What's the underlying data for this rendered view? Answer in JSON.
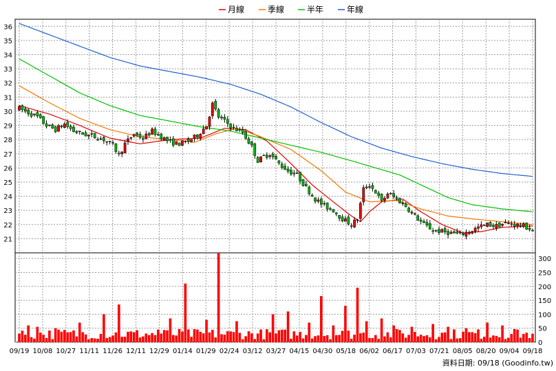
{
  "chart_data": {
    "type": "candlestick",
    "legend": [
      {
        "label": "月線",
        "color": "#e00000"
      },
      {
        "label": "季線",
        "color": "#f07800"
      },
      {
        "label": "半年",
        "color": "#00c000"
      },
      {
        "label": "年線",
        "color": "#1e5fd0"
      }
    ],
    "x_ticks": [
      "09/19",
      "10/08",
      "10/27",
      "11/11",
      "11/26",
      "12/11",
      "12/29",
      "01/14",
      "01/29",
      "02/24",
      "03/12",
      "03/27",
      "04/15",
      "04/30",
      "05/18",
      "06/02",
      "06/17",
      "07/03",
      "07/21",
      "08/05",
      "08/20",
      "09/04",
      "09/18"
    ],
    "price_axis": {
      "ylim": [
        20,
        36.5
      ],
      "ticks": [
        21,
        22,
        23,
        24,
        25,
        26,
        27,
        28,
        29,
        30,
        31,
        32,
        33,
        34,
        35,
        36
      ]
    },
    "volume_axis": {
      "ylim": [
        0,
        320
      ],
      "ticks": [
        0,
        50,
        100,
        150,
        200,
        250,
        300
      ]
    },
    "price_path": [
      [
        0,
        30.2
      ],
      [
        3,
        29.9
      ],
      [
        6,
        29.6
      ],
      [
        9,
        29.0
      ],
      [
        12,
        28.7
      ],
      [
        15,
        29.1
      ],
      [
        18,
        28.6
      ],
      [
        21,
        28.4
      ],
      [
        25,
        28.2
      ],
      [
        28,
        28.0
      ],
      [
        31,
        27.6
      ],
      [
        33,
        26.9
      ],
      [
        35,
        27.7
      ],
      [
        38,
        28.4
      ],
      [
        41,
        28.1
      ],
      [
        44,
        28.6
      ],
      [
        47,
        28.2
      ],
      [
        50,
        27.8
      ],
      [
        53,
        27.7
      ],
      [
        56,
        27.9
      ],
      [
        59,
        28.3
      ],
      [
        62,
        29.0
      ],
      [
        64,
        30.5
      ],
      [
        66,
        29.6
      ],
      [
        68,
        29.3
      ],
      [
        71,
        28.8
      ],
      [
        74,
        28.5
      ],
      [
        77,
        27.5
      ],
      [
        79,
        26.5
      ],
      [
        81,
        26.8
      ],
      [
        83,
        27.0
      ],
      [
        86,
        26.3
      ],
      [
        89,
        25.8
      ],
      [
        92,
        25.5
      ],
      [
        95,
        24.6
      ],
      [
        98,
        23.8
      ],
      [
        101,
        23.3
      ],
      [
        104,
        23.0
      ],
      [
        107,
        22.4
      ],
      [
        110,
        22.0
      ],
      [
        112,
        22.4
      ],
      [
        114,
        24.5
      ],
      [
        116,
        24.8
      ],
      [
        118,
        24.3
      ],
      [
        120,
        23.6
      ],
      [
        122,
        24.2
      ],
      [
        125,
        23.8
      ],
      [
        128,
        23.3
      ],
      [
        131,
        22.6
      ],
      [
        134,
        22.0
      ],
      [
        137,
        21.6
      ],
      [
        140,
        21.5
      ],
      [
        143,
        21.4
      ],
      [
        146,
        21.3
      ],
      [
        149,
        21.5
      ],
      [
        152,
        21.8
      ],
      [
        155,
        22.0
      ],
      [
        158,
        21.9
      ],
      [
        161,
        22.1
      ],
      [
        164,
        22.0
      ],
      [
        167,
        21.9
      ],
      [
        170,
        21.6
      ]
    ],
    "moving_averages": {
      "月線": [
        [
          0,
          30.4
        ],
        [
          10,
          29.8
        ],
        [
          20,
          29.0
        ],
        [
          30,
          28.1
        ],
        [
          40,
          27.7
        ],
        [
          50,
          28.0
        ],
        [
          60,
          28.1
        ],
        [
          68,
          28.8
        ],
        [
          75,
          28.7
        ],
        [
          82,
          27.9
        ],
        [
          90,
          26.3
        ],
        [
          97,
          24.8
        ],
        [
          104,
          23.6
        ],
        [
          110,
          22.6
        ],
        [
          113,
          22.2
        ],
        [
          116,
          22.9
        ],
        [
          120,
          23.6
        ],
        [
          127,
          23.8
        ],
        [
          133,
          22.9
        ],
        [
          140,
          22.0
        ],
        [
          147,
          21.4
        ],
        [
          153,
          21.5
        ],
        [
          160,
          21.8
        ],
        [
          170,
          21.9
        ]
      ],
      "季線": [
        [
          0,
          31.8
        ],
        [
          10,
          30.6
        ],
        [
          20,
          29.5
        ],
        [
          30,
          28.7
        ],
        [
          40,
          28.2
        ],
        [
          50,
          28.0
        ],
        [
          58,
          27.8
        ],
        [
          65,
          28.4
        ],
        [
          72,
          28.8
        ],
        [
          80,
          28.2
        ],
        [
          90,
          27.3
        ],
        [
          100,
          25.8
        ],
        [
          108,
          24.3
        ],
        [
          116,
          23.6
        ],
        [
          125,
          23.7
        ],
        [
          133,
          23.1
        ],
        [
          142,
          22.6
        ],
        [
          150,
          22.4
        ],
        [
          160,
          22.2
        ],
        [
          170,
          22.0
        ]
      ],
      "半年": [
        [
          0,
          33.7
        ],
        [
          10,
          32.5
        ],
        [
          20,
          31.3
        ],
        [
          30,
          30.4
        ],
        [
          40,
          29.7
        ],
        [
          50,
          29.3
        ],
        [
          60,
          28.9
        ],
        [
          70,
          28.6
        ],
        [
          80,
          28.1
        ],
        [
          90,
          27.6
        ],
        [
          100,
          27.1
        ],
        [
          110,
          26.5
        ],
        [
          118,
          26.0
        ],
        [
          126,
          25.5
        ],
        [
          134,
          24.7
        ],
        [
          142,
          23.9
        ],
        [
          150,
          23.4
        ],
        [
          160,
          23.1
        ],
        [
          170,
          22.9
        ]
      ],
      "年線": [
        [
          0,
          36.2
        ],
        [
          10,
          35.4
        ],
        [
          20,
          34.6
        ],
        [
          30,
          33.8
        ],
        [
          40,
          33.2
        ],
        [
          50,
          32.8
        ],
        [
          60,
          32.4
        ],
        [
          70,
          31.9
        ],
        [
          80,
          31.2
        ],
        [
          90,
          30.3
        ],
        [
          100,
          29.2
        ],
        [
          110,
          28.2
        ],
        [
          120,
          27.4
        ],
        [
          130,
          26.8
        ],
        [
          140,
          26.3
        ],
        [
          150,
          25.9
        ],
        [
          160,
          25.6
        ],
        [
          170,
          25.4
        ]
      ]
    },
    "volume_spikes": [
      [
        3,
        60
      ],
      [
        6,
        55
      ],
      [
        12,
        50
      ],
      [
        20,
        70
      ],
      [
        28,
        100
      ],
      [
        33,
        135
      ],
      [
        46,
        45
      ],
      [
        50,
        85
      ],
      [
        55,
        210
      ],
      [
        62,
        80
      ],
      [
        66,
        320
      ],
      [
        72,
        75
      ],
      [
        84,
        100
      ],
      [
        89,
        110
      ],
      [
        96,
        70
      ],
      [
        100,
        165
      ],
      [
        104,
        60
      ],
      [
        108,
        130
      ],
      [
        112,
        195
      ],
      [
        115,
        75
      ],
      [
        120,
        85
      ],
      [
        124,
        60
      ],
      [
        130,
        55
      ],
      [
        137,
        65
      ],
      [
        142,
        55
      ],
      [
        148,
        50
      ],
      [
        155,
        70
      ],
      [
        160,
        60
      ],
      [
        165,
        45
      ],
      [
        170,
        30
      ]
    ]
  },
  "footer": "資料日期: 09/18 (Goodinfo.tw)"
}
